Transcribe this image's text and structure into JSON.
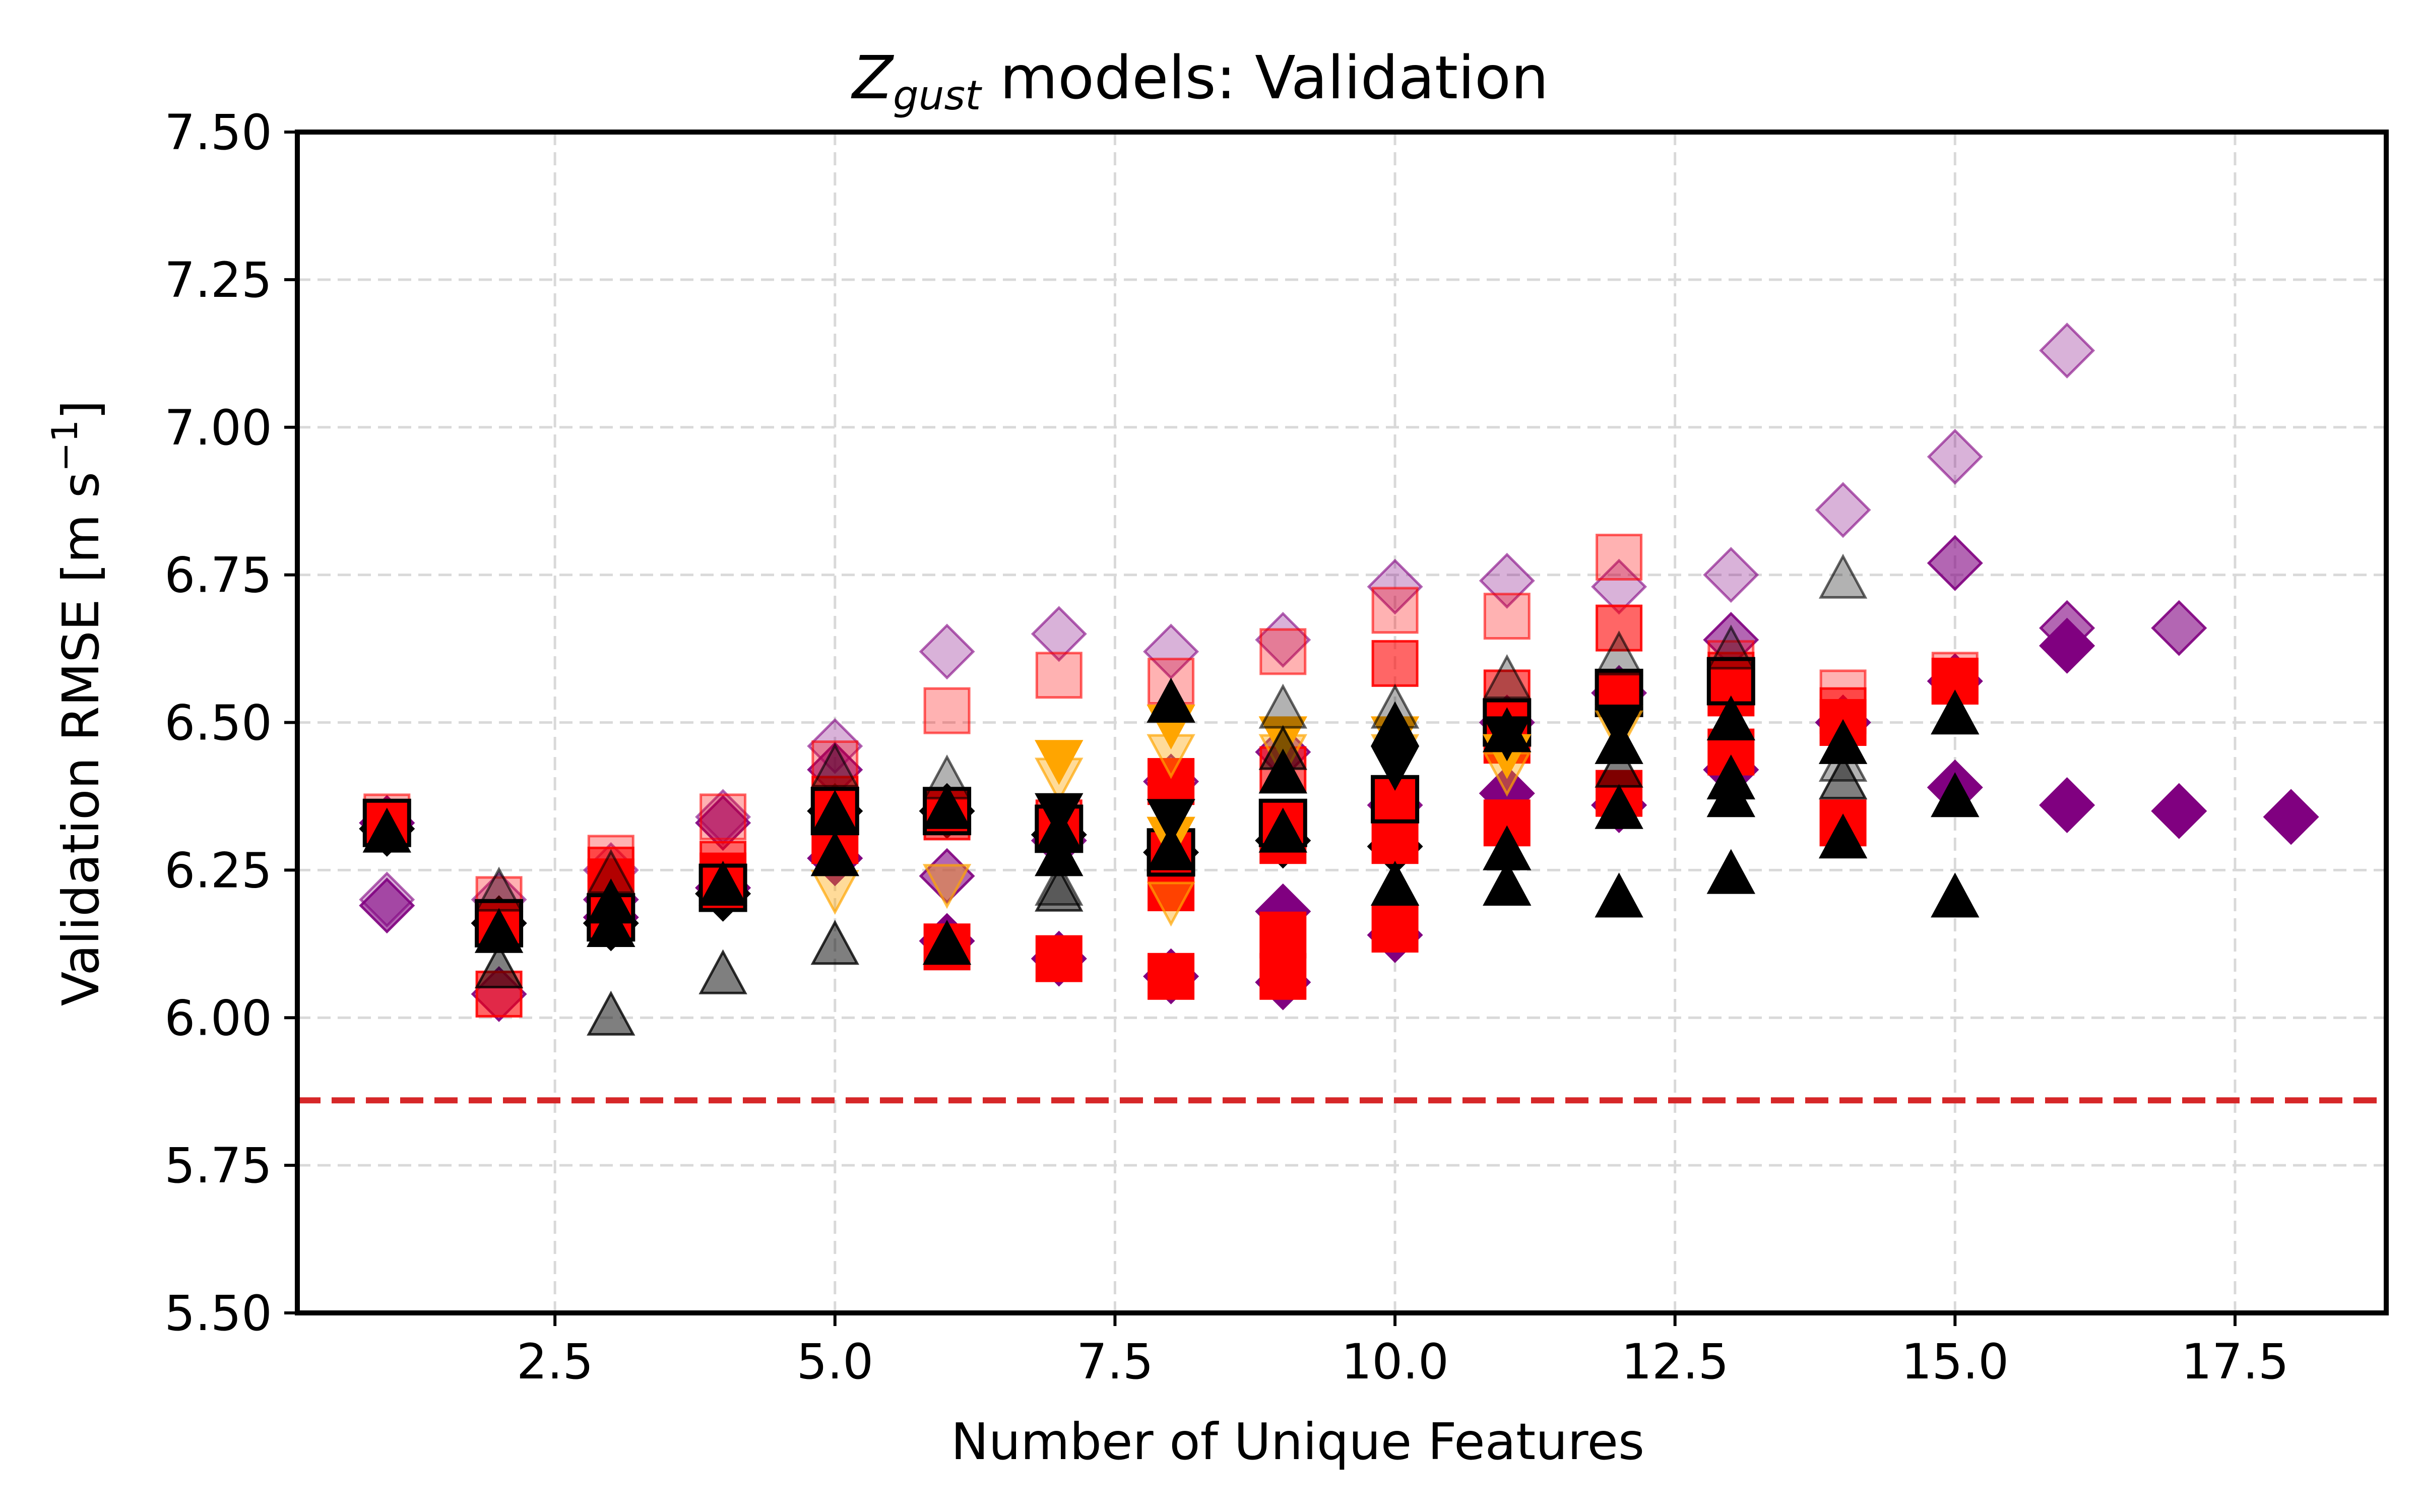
{
  "chart_data": {
    "type": "scatter",
    "title": {
      "symbol": "Z",
      "subscript": "gust",
      "rest": " models: Validation"
    },
    "xlabel": "Number of Unique Features",
    "ylabel": {
      "main": "Validation RMSE [m s",
      "superscript": "−1",
      "close": "]"
    },
    "xlim": [
      0.2,
      18.85
    ],
    "ylim": [
      5.5,
      7.5
    ],
    "x_ticks": [
      2.5,
      5.0,
      7.5,
      10.0,
      12.5,
      15.0,
      17.5
    ],
    "x_tick_labels": [
      "2.5",
      "5.0",
      "7.5",
      "10.0",
      "12.5",
      "15.0",
      "17.5"
    ],
    "y_ticks": [
      5.5,
      5.75,
      6.0,
      6.25,
      6.5,
      6.75,
      7.0,
      7.25,
      7.5
    ],
    "y_tick_labels": [
      "5.50",
      "5.75",
      "6.00",
      "6.25",
      "6.50",
      "6.75",
      "7.00",
      "7.25",
      "7.50"
    ],
    "grid": true,
    "reference_line": {
      "y": 5.86,
      "color": "#d62728",
      "style": "dashed"
    },
    "colors": {
      "purple": "#800080",
      "red": "#ff0000",
      "orange": "#ffa500",
      "black": "#000000"
    },
    "series": [
      {
        "marker": "diamond",
        "color": "#800080",
        "opacity": 0.3,
        "points": [
          [
            1,
            6.2
          ],
          [
            2,
            6.2
          ],
          [
            3,
            6.25
          ],
          [
            4,
            6.34
          ],
          [
            5,
            6.46
          ],
          [
            6,
            6.62
          ],
          [
            7,
            6.65
          ],
          [
            8,
            6.62
          ],
          [
            9,
            6.64
          ],
          [
            10,
            6.73
          ],
          [
            11,
            6.74
          ],
          [
            12,
            6.73
          ],
          [
            13,
            6.75
          ],
          [
            14,
            6.86
          ],
          [
            15,
            6.95
          ],
          [
            16,
            7.13
          ]
        ]
      },
      {
        "marker": "diamond",
        "color": "#800080",
        "opacity": 0.6,
        "points": [
          [
            1,
            6.19
          ],
          [
            2,
            6.04
          ],
          [
            3,
            6.2
          ],
          [
            4,
            6.33
          ],
          [
            5,
            6.42
          ],
          [
            6,
            6.24
          ],
          [
            7,
            6.3
          ],
          [
            8,
            6.4
          ],
          [
            9,
            6.45
          ],
          [
            10,
            6.36
          ],
          [
            11,
            6.5
          ],
          [
            12,
            6.55
          ],
          [
            13,
            6.64
          ],
          [
            14,
            6.5
          ],
          [
            15,
            6.77
          ],
          [
            16,
            6.66
          ],
          [
            17,
            6.66
          ]
        ]
      },
      {
        "marker": "diamond",
        "color": "#800080",
        "opacity": 1.0,
        "points": [
          [
            1,
            6.33
          ],
          [
            2,
            6.16
          ],
          [
            3,
            6.17
          ],
          [
            4,
            6.22
          ],
          [
            5,
            6.27
          ],
          [
            6,
            6.13
          ],
          [
            7,
            6.1
          ],
          [
            8,
            6.07
          ],
          [
            9,
            6.06
          ],
          [
            9,
            6.18
          ],
          [
            10,
            6.14
          ],
          [
            11,
            6.38
          ],
          [
            12,
            6.36
          ],
          [
            13,
            6.42
          ],
          [
            14,
            6.5
          ],
          [
            15,
            6.39
          ],
          [
            15,
            6.57
          ],
          [
            16,
            6.36
          ],
          [
            16,
            6.63
          ],
          [
            17,
            6.35
          ],
          [
            18,
            6.34
          ]
        ]
      },
      {
        "marker": "diamond",
        "color": "#000000",
        "opacity": 1.0,
        "points": [
          [
            1,
            6.32
          ],
          [
            2,
            6.16
          ],
          [
            3,
            6.16
          ],
          [
            4,
            6.21
          ],
          [
            5,
            6.35
          ],
          [
            6,
            6.35
          ],
          [
            7,
            6.31
          ],
          [
            8,
            6.28
          ],
          [
            9,
            6.3
          ],
          [
            10,
            6.29
          ]
        ]
      },
      {
        "marker": "square",
        "color": "#ff0000",
        "opacity": 0.3,
        "points": [
          [
            1,
            6.34
          ],
          [
            2,
            6.2
          ],
          [
            3,
            6.27
          ],
          [
            4,
            6.34
          ],
          [
            5,
            6.43
          ],
          [
            6,
            6.52
          ],
          [
            7,
            6.58
          ],
          [
            8,
            6.57
          ],
          [
            9,
            6.62
          ],
          [
            10,
            6.69
          ],
          [
            11,
            6.68
          ],
          [
            12,
            6.78
          ],
          [
            13,
            6.6
          ],
          [
            14,
            6.55
          ],
          [
            15,
            6.58
          ]
        ]
      },
      {
        "marker": "square",
        "color": "#ff0000",
        "opacity": 0.6,
        "points": [
          [
            1,
            6.33
          ],
          [
            2,
            6.04
          ],
          [
            3,
            6.25
          ],
          [
            4,
            6.26
          ],
          [
            5,
            6.37
          ],
          [
            6,
            6.34
          ],
          [
            7,
            6.33
          ],
          [
            8,
            6.4
          ],
          [
            9,
            6.42
          ],
          [
            10,
            6.6
          ],
          [
            11,
            6.55
          ],
          [
            12,
            6.66
          ],
          [
            13,
            6.58
          ],
          [
            14,
            6.52
          ],
          [
            15,
            6.57
          ]
        ]
      },
      {
        "marker": "square",
        "color": "#ff0000",
        "opacity": 1.0,
        "points": [
          [
            1,
            6.33
          ],
          [
            2,
            6.16
          ],
          [
            3,
            6.23
          ],
          [
            4,
            6.24
          ],
          [
            5,
            6.3
          ],
          [
            6,
            6.12
          ],
          [
            7,
            6.1
          ],
          [
            7,
            6.32
          ],
          [
            8,
            6.07
          ],
          [
            8,
            6.22
          ],
          [
            8,
            6.4
          ],
          [
            9,
            6.07
          ],
          [
            9,
            6.14
          ],
          [
            9,
            6.3
          ],
          [
            10,
            6.15
          ],
          [
            10,
            6.3
          ],
          [
            11,
            6.33
          ],
          [
            11,
            6.47
          ],
          [
            12,
            6.38
          ],
          [
            12,
            6.55
          ],
          [
            13,
            6.45
          ],
          [
            13,
            6.55
          ],
          [
            14,
            6.33
          ],
          [
            14,
            6.5
          ],
          [
            15,
            6.57
          ]
        ]
      },
      {
        "marker": "square",
        "color": "#ff0000",
        "opacity": 1.0,
        "edge": "#000000",
        "points": [
          [
            1,
            6.33
          ],
          [
            2,
            6.16
          ],
          [
            3,
            6.17
          ],
          [
            4,
            6.22
          ],
          [
            5,
            6.35
          ],
          [
            6,
            6.35
          ],
          [
            7,
            6.32
          ],
          [
            8,
            6.28
          ],
          [
            9,
            6.33
          ],
          [
            10,
            6.37
          ],
          [
            11,
            6.5
          ],
          [
            12,
            6.55
          ],
          [
            13,
            6.57
          ]
        ]
      },
      {
        "marker": "triangle-down",
        "color": "#ffa500",
        "opacity": 0.4,
        "points": [
          [
            5,
            6.22
          ],
          [
            6,
            6.23
          ],
          [
            7,
            6.41
          ],
          [
            8,
            6.2
          ],
          [
            8,
            6.45
          ],
          [
            9,
            6.45
          ],
          [
            10,
            6.45
          ],
          [
            11,
            6.42
          ],
          [
            12,
            6.49
          ]
        ]
      },
      {
        "marker": "triangle-down",
        "color": "#ffa500",
        "opacity": 1.0,
        "points": [
          [
            7,
            6.44
          ],
          [
            8,
            6.31
          ],
          [
            8,
            6.5
          ],
          [
            9,
            6.48
          ],
          [
            10,
            6.48
          ],
          [
            11,
            6.45
          ],
          [
            12,
            6.5
          ]
        ]
      },
      {
        "marker": "triangle-down",
        "color": "#000000",
        "opacity": 1.0,
        "points": [
          [
            7,
            6.35
          ],
          [
            8,
            6.34
          ],
          [
            10,
            6.43
          ],
          [
            11,
            6.48
          ],
          [
            12,
            6.5
          ]
        ]
      },
      {
        "marker": "triangle-up",
        "color": "#000000",
        "opacity": 0.3,
        "points": [
          [
            2,
            6.21
          ],
          [
            3,
            6.24
          ],
          [
            5,
            6.42
          ],
          [
            6,
            6.4
          ],
          [
            7,
            6.22
          ],
          [
            8,
            6.53
          ],
          [
            9,
            6.52
          ],
          [
            10,
            6.52
          ],
          [
            11,
            6.57
          ],
          [
            12,
            6.61
          ],
          [
            13,
            6.62
          ],
          [
            14,
            6.74
          ],
          [
            14,
            6.43
          ]
        ]
      },
      {
        "marker": "triangle-up",
        "color": "#000000",
        "opacity": 0.5,
        "points": [
          [
            2,
            6.08
          ],
          [
            3,
            6.0
          ],
          [
            4,
            6.07
          ],
          [
            5,
            6.12
          ],
          [
            7,
            6.21
          ],
          [
            9,
            6.45
          ],
          [
            12,
            6.42
          ],
          [
            14,
            6.4
          ]
        ]
      },
      {
        "marker": "triangle-up",
        "color": "#000000",
        "opacity": 1.0,
        "points": [
          [
            1,
            6.31
          ],
          [
            2,
            6.14
          ],
          [
            3,
            6.15
          ],
          [
            3,
            6.19
          ],
          [
            4,
            6.22
          ],
          [
            5,
            6.27
          ],
          [
            5,
            6.34
          ],
          [
            6,
            6.12
          ],
          [
            6,
            6.35
          ],
          [
            7,
            6.27
          ],
          [
            7,
            6.31
          ],
          [
            8,
            6.28
          ],
          [
            8,
            6.53
          ],
          [
            9,
            6.31
          ],
          [
            9,
            6.41
          ],
          [
            10,
            6.22
          ],
          [
            10,
            6.49
          ],
          [
            11,
            6.22
          ],
          [
            11,
            6.28
          ],
          [
            11,
            6.48
          ],
          [
            12,
            6.2
          ],
          [
            12,
            6.35
          ],
          [
            12,
            6.46
          ],
          [
            13,
            6.24
          ],
          [
            13,
            6.37
          ],
          [
            13,
            6.4
          ],
          [
            13,
            6.5
          ],
          [
            14,
            6.3
          ],
          [
            14,
            6.46
          ],
          [
            15,
            6.2
          ],
          [
            15,
            6.37
          ],
          [
            15,
            6.51
          ]
        ]
      }
    ]
  }
}
